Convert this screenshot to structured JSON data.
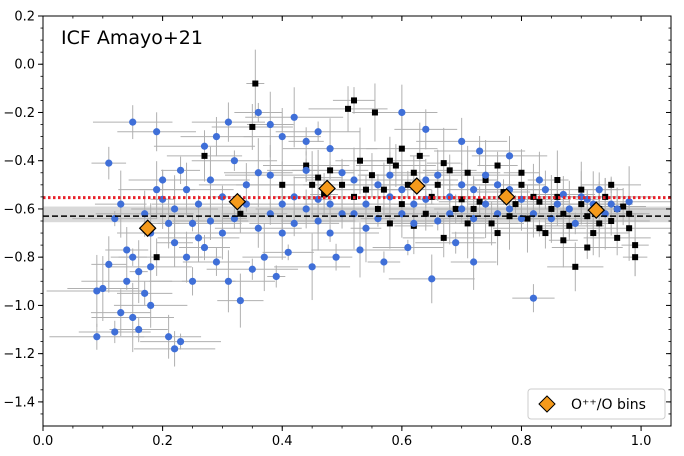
{
  "chart_data": {
    "type": "scatter",
    "title": "",
    "xlabel": "",
    "ylabel": "",
    "xlim": [
      0.0,
      1.05
    ],
    "ylim": [
      -1.5,
      0.2
    ],
    "x_ticks": [
      0.0,
      0.2,
      0.4,
      0.6,
      0.8,
      1.0
    ],
    "x_tick_labels": [
      "0.0",
      "0.2",
      "0.4",
      "0.6",
      "0.8",
      "1.0"
    ],
    "y_ticks": [
      0.2,
      0.0,
      -0.2,
      -0.4,
      -0.6,
      -0.8,
      -1.0,
      -1.2,
      -1.4
    ],
    "y_tick_labels": [
      "0.2",
      "0.0",
      "−0.2",
      "−0.4",
      "−0.6",
      "−0.8",
      "−1.0",
      "−1.2",
      "−1.4"
    ],
    "annotation": "ICF Amayo+21",
    "grid": false,
    "legend_position": "lower-right",
    "colors": {
      "blue_points": "#3f6fd8",
      "black_points": "#000000",
      "errorbars": "#b0b0b0",
      "bins_face": "#f59a1b",
      "band": "#d9d9d9",
      "mean_line": "#000000",
      "ref_line": "#e8202a"
    },
    "reference_line": {
      "y": -0.553,
      "color": "#e8202a",
      "style": "dotted"
    },
    "mean_line": {
      "y": -0.63,
      "color": "#000000",
      "style": "dashed"
    },
    "band": {
      "y_low": -0.655,
      "y_high": -0.59
    },
    "series": [
      {
        "name": "O⁺⁺/O bins",
        "marker": "diamond",
        "points": [
          {
            "x": 0.175,
            "y": -0.68
          },
          {
            "x": 0.325,
            "y": -0.57
          },
          {
            "x": 0.475,
            "y": -0.515
          },
          {
            "x": 0.625,
            "y": -0.505
          },
          {
            "x": 0.775,
            "y": -0.55
          },
          {
            "x": 0.925,
            "y": -0.605
          }
        ]
      },
      {
        "marker": "square",
        "color": "#000000",
        "points": [
          {
            "x": 0.355,
            "y": -0.08
          },
          {
            "x": 0.52,
            "y": -0.15
          },
          {
            "x": 0.51,
            "y": -0.185
          },
          {
            "x": 0.555,
            "y": -0.2
          },
          {
            "x": 0.35,
            "y": -0.26
          },
          {
            "x": 0.27,
            "y": -0.38
          },
          {
            "x": 0.44,
            "y": -0.42
          },
          {
            "x": 0.46,
            "y": -0.47
          },
          {
            "x": 0.48,
            "y": -0.44
          },
          {
            "x": 0.5,
            "y": -0.5
          },
          {
            "x": 0.52,
            "y": -0.55
          },
          {
            "x": 0.55,
            "y": -0.46
          },
          {
            "x": 0.57,
            "y": -0.52
          },
          {
            "x": 0.58,
            "y": -0.4
          },
          {
            "x": 0.6,
            "y": -0.58
          },
          {
            "x": 0.62,
            "y": -0.45
          },
          {
            "x": 0.64,
            "y": -0.62
          },
          {
            "x": 0.66,
            "y": -0.5
          },
          {
            "x": 0.68,
            "y": -0.44
          },
          {
            "x": 0.7,
            "y": -0.56
          },
          {
            "x": 0.72,
            "y": -0.6
          },
          {
            "x": 0.74,
            "y": -0.48
          },
          {
            "x": 0.75,
            "y": -0.66
          },
          {
            "x": 0.77,
            "y": -0.53
          },
          {
            "x": 0.79,
            "y": -0.58
          },
          {
            "x": 0.8,
            "y": -0.5
          },
          {
            "x": 0.81,
            "y": -0.64
          },
          {
            "x": 0.83,
            "y": -0.57
          },
          {
            "x": 0.84,
            "y": -0.7
          },
          {
            "x": 0.86,
            "y": -0.55
          },
          {
            "x": 0.87,
            "y": -0.62
          },
          {
            "x": 0.88,
            "y": -0.67
          },
          {
            "x": 0.9,
            "y": -0.58
          },
          {
            "x": 0.91,
            "y": -0.63
          },
          {
            "x": 0.92,
            "y": -0.7
          },
          {
            "x": 0.93,
            "y": -0.6
          },
          {
            "x": 0.94,
            "y": -0.55
          },
          {
            "x": 0.95,
            "y": -0.65
          },
          {
            "x": 0.96,
            "y": -0.72
          },
          {
            "x": 0.97,
            "y": -0.59
          },
          {
            "x": 0.98,
            "y": -0.68
          },
          {
            "x": 0.99,
            "y": -0.75
          },
          {
            "x": 0.99,
            "y": -0.8
          },
          {
            "x": 0.98,
            "y": -0.62
          },
          {
            "x": 0.96,
            "y": -0.6
          },
          {
            "x": 0.91,
            "y": -0.76
          },
          {
            "x": 0.89,
            "y": -0.84
          },
          {
            "x": 0.85,
            "y": -0.6
          },
          {
            "x": 0.82,
            "y": -0.55
          },
          {
            "x": 0.78,
            "y": -0.63
          },
          {
            "x": 0.73,
            "y": -0.57
          },
          {
            "x": 0.69,
            "y": -0.6
          },
          {
            "x": 0.65,
            "y": -0.55
          },
          {
            "x": 0.61,
            "y": -0.5
          },
          {
            "x": 0.59,
            "y": -0.42
          },
          {
            "x": 0.56,
            "y": -0.6
          },
          {
            "x": 0.54,
            "y": -0.52
          },
          {
            "x": 0.53,
            "y": -0.4
          },
          {
            "x": 0.47,
            "y": -0.54
          },
          {
            "x": 0.45,
            "y": -0.5
          },
          {
            "x": 0.6,
            "y": -0.35
          },
          {
            "x": 0.63,
            "y": -0.38
          },
          {
            "x": 0.67,
            "y": -0.41
          },
          {
            "x": 0.71,
            "y": -0.45
          },
          {
            "x": 0.76,
            "y": -0.42
          },
          {
            "x": 0.8,
            "y": -0.45
          },
          {
            "x": 0.86,
            "y": -0.48
          },
          {
            "x": 0.9,
            "y": -0.52
          },
          {
            "x": 0.95,
            "y": -0.5
          },
          {
            "x": 0.93,
            "y": -0.66
          },
          {
            "x": 0.87,
            "y": -0.73
          },
          {
            "x": 0.83,
            "y": -0.68
          },
          {
            "x": 0.76,
            "y": -0.7
          },
          {
            "x": 0.71,
            "y": -0.66
          },
          {
            "x": 0.67,
            "y": -0.72
          },
          {
            "x": 0.62,
            "y": -0.67
          },
          {
            "x": 0.19,
            "y": -0.8
          },
          {
            "x": 0.33,
            "y": -0.62
          },
          {
            "x": 0.4,
            "y": -0.5
          },
          {
            "x": 0.58,
            "y": -0.66
          }
        ]
      },
      {
        "marker": "circle",
        "color": "#3f6fd8",
        "points": [
          {
            "x": 0.15,
            "y": -0.24
          },
          {
            "x": 0.19,
            "y": -0.28
          },
          {
            "x": 0.11,
            "y": -0.41
          },
          {
            "x": 0.09,
            "y": -0.94
          },
          {
            "x": 0.1,
            "y": -0.93
          },
          {
            "x": 0.09,
            "y": -1.13
          },
          {
            "x": 0.12,
            "y": -1.11
          },
          {
            "x": 0.13,
            "y": -1.03
          },
          {
            "x": 0.15,
            "y": -1.05
          },
          {
            "x": 0.16,
            "y": -1.1
          },
          {
            "x": 0.17,
            "y": -0.95
          },
          {
            "x": 0.18,
            "y": -1.0
          },
          {
            "x": 0.21,
            "y": -1.13
          },
          {
            "x": 0.22,
            "y": -1.18
          },
          {
            "x": 0.23,
            "y": -1.15
          },
          {
            "x": 0.14,
            "y": -0.77
          },
          {
            "x": 0.11,
            "y": -0.83
          },
          {
            "x": 0.82,
            "y": -0.97
          },
          {
            "x": 0.31,
            "y": -0.24
          },
          {
            "x": 0.2,
            "y": -0.56
          },
          {
            "x": 0.22,
            "y": -0.6
          },
          {
            "x": 0.24,
            "y": -0.52
          },
          {
            "x": 0.25,
            "y": -0.66
          },
          {
            "x": 0.26,
            "y": -0.72
          },
          {
            "x": 0.28,
            "y": -0.48
          },
          {
            "x": 0.3,
            "y": -0.55
          },
          {
            "x": 0.32,
            "y": -0.64
          },
          {
            "x": 0.34,
            "y": -0.58
          },
          {
            "x": 0.36,
            "y": -0.45
          },
          {
            "x": 0.38,
            "y": -0.62
          },
          {
            "x": 0.4,
            "y": -0.7
          },
          {
            "x": 0.42,
            "y": -0.55
          },
          {
            "x": 0.44,
            "y": -0.6
          },
          {
            "x": 0.46,
            "y": -0.65
          },
          {
            "x": 0.48,
            "y": -0.58
          },
          {
            "x": 0.5,
            "y": -0.45
          },
          {
            "x": 0.52,
            "y": -0.62
          },
          {
            "x": 0.54,
            "y": -0.68
          },
          {
            "x": 0.56,
            "y": -0.5
          },
          {
            "x": 0.58,
            "y": -0.55
          },
          {
            "x": 0.6,
            "y": -0.62
          },
          {
            "x": 0.62,
            "y": -0.58
          },
          {
            "x": 0.64,
            "y": -0.48
          },
          {
            "x": 0.66,
            "y": -0.65
          },
          {
            "x": 0.68,
            "y": -0.55
          },
          {
            "x": 0.7,
            "y": -0.6
          },
          {
            "x": 0.72,
            "y": -0.52
          },
          {
            "x": 0.74,
            "y": -0.58
          },
          {
            "x": 0.76,
            "y": -0.5
          },
          {
            "x": 0.78,
            "y": -0.6
          },
          {
            "x": 0.8,
            "y": -0.56
          },
          {
            "x": 0.82,
            "y": -0.62
          },
          {
            "x": 0.84,
            "y": -0.52
          },
          {
            "x": 0.86,
            "y": -0.58
          },
          {
            "x": 0.88,
            "y": -0.6
          },
          {
            "x": 0.9,
            "y": -0.55
          },
          {
            "x": 0.92,
            "y": -0.58
          },
          {
            "x": 0.94,
            "y": -0.62
          },
          {
            "x": 0.96,
            "y": -0.6
          },
          {
            "x": 0.98,
            "y": -0.57
          },
          {
            "x": 0.36,
            "y": -0.2
          },
          {
            "x": 0.38,
            "y": -0.25
          },
          {
            "x": 0.4,
            "y": -0.3
          },
          {
            "x": 0.42,
            "y": -0.22
          },
          {
            "x": 0.44,
            "y": -0.32
          },
          {
            "x": 0.46,
            "y": -0.28
          },
          {
            "x": 0.48,
            "y": -0.35
          },
          {
            "x": 0.6,
            "y": -0.2
          },
          {
            "x": 0.64,
            "y": -0.27
          },
          {
            "x": 0.7,
            "y": -0.32
          },
          {
            "x": 0.73,
            "y": -0.36
          },
          {
            "x": 0.78,
            "y": -0.38
          },
          {
            "x": 0.27,
            "y": -0.76
          },
          {
            "x": 0.29,
            "y": -0.82
          },
          {
            "x": 0.31,
            "y": -0.9
          },
          {
            "x": 0.33,
            "y": -0.98
          },
          {
            "x": 0.35,
            "y": -0.85
          },
          {
            "x": 0.37,
            "y": -0.8
          },
          {
            "x": 0.39,
            "y": -0.88
          },
          {
            "x": 0.41,
            "y": -0.78
          },
          {
            "x": 0.45,
            "y": -0.84
          },
          {
            "x": 0.49,
            "y": -0.8
          },
          {
            "x": 0.53,
            "y": -0.77
          },
          {
            "x": 0.57,
            "y": -0.82
          },
          {
            "x": 0.61,
            "y": -0.76
          },
          {
            "x": 0.65,
            "y": -0.89
          },
          {
            "x": 0.69,
            "y": -0.74
          },
          {
            "x": 0.72,
            "y": -0.82
          },
          {
            "x": 0.17,
            "y": -0.62
          },
          {
            "x": 0.18,
            "y": -0.7
          },
          {
            "x": 0.19,
            "y": -0.52
          },
          {
            "x": 0.2,
            "y": -0.48
          },
          {
            "x": 0.21,
            "y": -0.66
          },
          {
            "x": 0.22,
            "y": -0.74
          },
          {
            "x": 0.23,
            "y": -0.44
          },
          {
            "x": 0.24,
            "y": -0.8
          },
          {
            "x": 0.25,
            "y": -0.9
          },
          {
            "x": 0.26,
            "y": -0.58
          },
          {
            "x": 0.28,
            "y": -0.65
          },
          {
            "x": 0.3,
            "y": -0.7
          },
          {
            "x": 0.32,
            "y": -0.4
          },
          {
            "x": 0.34,
            "y": -0.5
          },
          {
            "x": 0.36,
            "y": -0.68
          },
          {
            "x": 0.38,
            "y": -0.46
          },
          {
            "x": 0.4,
            "y": -0.58
          },
          {
            "x": 0.42,
            "y": -0.66
          },
          {
            "x": 0.44,
            "y": -0.44
          },
          {
            "x": 0.46,
            "y": -0.56
          },
          {
            "x": 0.48,
            "y": -0.7
          },
          {
            "x": 0.5,
            "y": -0.62
          },
          {
            "x": 0.52,
            "y": -0.48
          },
          {
            "x": 0.54,
            "y": -0.58
          },
          {
            "x": 0.56,
            "y": -0.64
          },
          {
            "x": 0.58,
            "y": -0.46
          },
          {
            "x": 0.6,
            "y": -0.52
          },
          {
            "x": 0.62,
            "y": -0.66
          },
          {
            "x": 0.64,
            "y": -0.56
          },
          {
            "x": 0.66,
            "y": -0.46
          },
          {
            "x": 0.68,
            "y": -0.62
          },
          {
            "x": 0.7,
            "y": -0.5
          },
          {
            "x": 0.72,
            "y": -0.64
          },
          {
            "x": 0.74,
            "y": -0.46
          },
          {
            "x": 0.76,
            "y": -0.62
          },
          {
            "x": 0.78,
            "y": -0.52
          },
          {
            "x": 0.8,
            "y": -0.64
          },
          {
            "x": 0.83,
            "y": -0.48
          },
          {
            "x": 0.85,
            "y": -0.64
          },
          {
            "x": 0.87,
            "y": -0.54
          },
          {
            "x": 0.89,
            "y": -0.66
          },
          {
            "x": 0.91,
            "y": -0.56
          },
          {
            "x": 0.93,
            "y": -0.52
          },
          {
            "x": 0.95,
            "y": -0.58
          },
          {
            "x": 0.15,
            "y": -0.8
          },
          {
            "x": 0.16,
            "y": -0.86
          },
          {
            "x": 0.14,
            "y": -0.9
          },
          {
            "x": 0.18,
            "y": -0.84
          },
          {
            "x": 0.13,
            "y": -0.58
          },
          {
            "x": 0.12,
            "y": -0.64
          },
          {
            "x": 0.27,
            "y": -0.34
          },
          {
            "x": 0.29,
            "y": -0.3
          }
        ]
      }
    ]
  }
}
